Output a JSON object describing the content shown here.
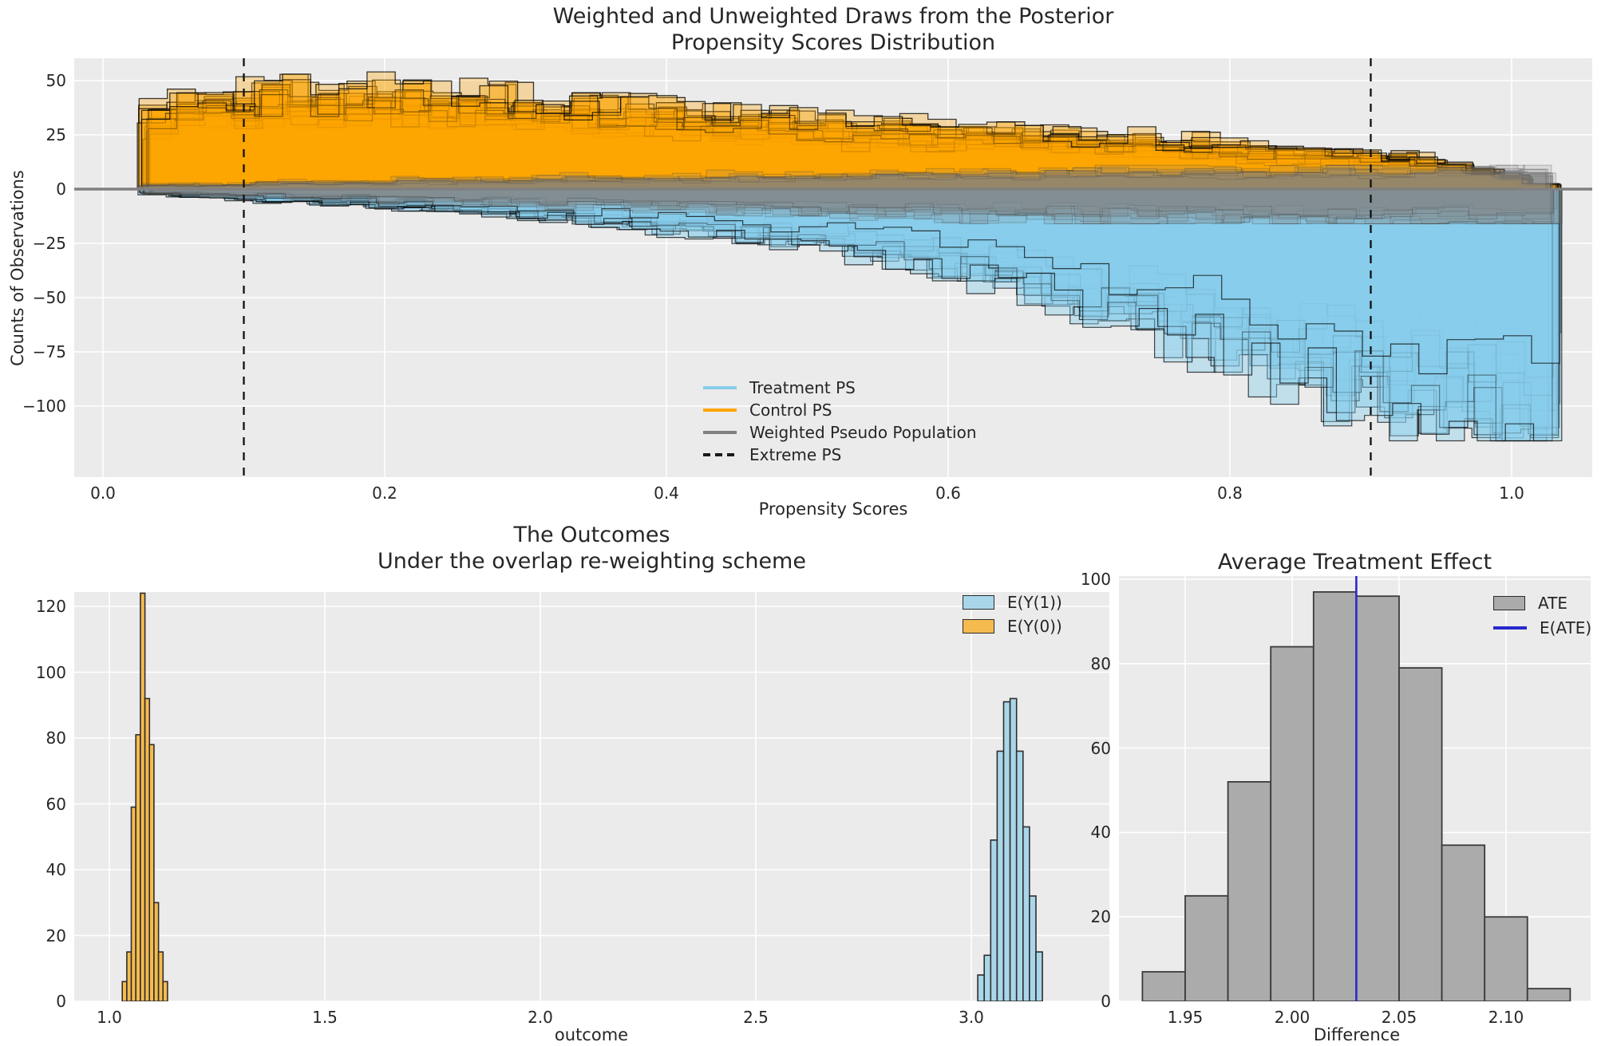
{
  "figure": {
    "bg": "#ffffff",
    "axes_bg": "#ebebeb",
    "grid_color": "#ffffff",
    "text_color": "#262626"
  },
  "chart_data": [
    {
      "type": "area",
      "panel": "top",
      "title_line1": "Weighted and Unweighted Draws from the Posterior",
      "title_line2": "Propensity Scores Distribution",
      "xlabel": "Propensity Scores",
      "ylabel": "Counts of Observations",
      "xlim": [
        -0.021,
        1.057
      ],
      "ylim": [
        -133,
        61
      ],
      "xtick_pos": [
        0.0,
        0.2,
        0.4,
        0.6,
        0.8,
        1.0
      ],
      "xtick_labels": [
        "0.0",
        "0.2",
        "0.4",
        "0.6",
        "0.8",
        "1.0"
      ],
      "ytick_pos": [
        50,
        25,
        0,
        -25,
        -50,
        -75,
        -100
      ],
      "ytick_labels": [
        "50",
        "25",
        "0",
        "−25",
        "−50",
        "−75",
        "−100"
      ],
      "grid": true,
      "legend_position": "lower center",
      "legend": [
        {
          "label": "Treatment PS",
          "swatch": "line",
          "color": "#87ceeb"
        },
        {
          "label": "Control PS",
          "swatch": "line",
          "color": "#ffa500"
        },
        {
          "label": "Weighted Pseudo Population",
          "swatch": "line",
          "color": "#808080"
        },
        {
          "label": "Extreme PS",
          "swatch": "dashed-line",
          "color": "#1a1a1a"
        }
      ],
      "zero_line": {
        "value": 0,
        "color": "#808080"
      },
      "extreme_ps": {
        "positions": [
          0.1,
          0.9
        ],
        "color": "#111111"
      },
      "bins": {
        "start": 0.03,
        "width": 0.02
      },
      "series": [
        {
          "name": "Control PS draws",
          "dir": 1,
          "color": "#ffa500",
          "fill_alpha": 0.32,
          "stroke": "#0a0a0a",
          "stroke_alpha": 0.8,
          "stroke_w": 1.3,
          "draws": 20,
          "fmin": 0.85,
          "fmax": 1.18,
          "noise": 0.22,
          "clamp": 54,
          "mean": [
            33,
            36,
            37,
            38,
            38,
            38,
            39,
            38,
            40,
            40,
            38,
            37,
            36,
            35,
            34,
            34,
            33,
            32,
            31,
            30,
            30,
            29,
            28,
            28,
            27,
            26,
            26,
            25,
            25,
            24,
            23,
            23,
            22,
            21,
            21,
            20,
            19,
            19,
            18,
            17,
            16,
            16,
            15,
            14,
            13,
            12,
            10,
            8,
            5,
            2
          ]
        },
        {
          "name": "Treatment PS draws",
          "dir": -1,
          "color": "#87ceeb",
          "fill_alpha": 0.42,
          "stroke": "#0a0a0a",
          "stroke_alpha": 0.75,
          "stroke_w": 1.2,
          "draws": 20,
          "fmin": 0.7,
          "fmax": 1.22,
          "noise": 0.22,
          "clamp": 116,
          "mean": [
            2,
            3,
            3,
            4,
            5,
            5,
            6,
            6,
            7,
            8,
            8,
            9,
            10,
            11,
            12,
            13,
            14,
            15,
            16,
            17,
            18,
            19,
            21,
            22,
            24,
            26,
            28,
            30,
            33,
            36,
            39,
            42,
            45,
            48,
            52,
            56,
            60,
            64,
            68,
            72,
            76,
            80,
            84,
            88,
            91,
            94,
            97,
            100,
            103,
            105
          ]
        },
        {
          "name": "Weighted pseudo population (control)",
          "dir": 1,
          "color": "#808080",
          "fill_alpha": 0.16,
          "stroke": "#3c3c3c",
          "stroke_alpha": 0.3,
          "stroke_w": 1,
          "draws": 10,
          "fmin": 0.7,
          "fmax": 1.2,
          "noise": 0.3,
          "clamp": 11,
          "mean": [
            2,
            2,
            2,
            2,
            3,
            3,
            3,
            3,
            3,
            4,
            4,
            4,
            4,
            4,
            5,
            5,
            5,
            5,
            5,
            5,
            6,
            6,
            6,
            6,
            6,
            6,
            7,
            7,
            7,
            7,
            7,
            7,
            7,
            8,
            8,
            8,
            8,
            8,
            8,
            8,
            8,
            9,
            9,
            9,
            9,
            9,
            9,
            9,
            9,
            9
          ]
        },
        {
          "name": "Weighted pseudo population (treatment)",
          "dir": -1,
          "color": "#808080",
          "fill_alpha": 0.16,
          "stroke": "#3c3c3c",
          "stroke_alpha": 0.3,
          "stroke_w": 1,
          "draws": 10,
          "fmin": 0.7,
          "fmax": 1.2,
          "noise": 0.3,
          "clamp": 16,
          "mean": [
            2,
            2,
            3,
            3,
            3,
            4,
            4,
            4,
            5,
            5,
            5,
            6,
            6,
            6,
            7,
            7,
            7,
            8,
            8,
            8,
            9,
            9,
            9,
            10,
            10,
            10,
            11,
            11,
            11,
            11,
            12,
            12,
            12,
            12,
            12,
            13,
            13,
            13,
            13,
            13,
            13,
            14,
            14,
            14,
            14,
            14,
            14,
            14,
            14,
            14
          ]
        }
      ]
    },
    {
      "type": "bar",
      "panel": "bottom-left",
      "title_line1": "The Outcomes",
      "title_line2": "Under the overlap re-weighting scheme",
      "xlabel": "outcome",
      "ylabel": "",
      "xlim": [
        0.919,
        3.32
      ],
      "ylim": [
        0,
        125
      ],
      "xtick_pos": [
        1.0,
        1.5,
        2.0,
        2.5,
        3.0
      ],
      "xtick_labels": [
        "1.0",
        "1.5",
        "2.0",
        "2.5",
        "3.0"
      ],
      "ytick_pos": [
        0,
        20,
        40,
        60,
        80,
        100,
        120
      ],
      "ytick_labels": [
        "0",
        "20",
        "40",
        "60",
        "80",
        "100",
        "120"
      ],
      "grid": true,
      "legend_position": "upper right",
      "legend": [
        {
          "label": "E(Y(1))",
          "swatch": "patch",
          "color": "#a9d6e9"
        },
        {
          "label": "E(Y(0))",
          "swatch": "patch",
          "color": "#f5bb4f"
        }
      ],
      "series": [
        {
          "name": "E(Y(0))",
          "color": "#f5bb4f",
          "edge": "#2e2e2e",
          "edge_w": 1.6,
          "bin_start": 1.03,
          "bin_width": 0.0105,
          "values": [
            6,
            15,
            59,
            81,
            124,
            92,
            78,
            30,
            15,
            6
          ]
        },
        {
          "name": "E(Y(1))",
          "color": "#a9d6e9",
          "edge": "#2e2e2e",
          "edge_w": 1.6,
          "bin_start": 3.015,
          "bin_width": 0.015,
          "values": [
            8,
            14,
            49,
            76,
            91,
            92,
            76,
            53,
            32,
            15
          ]
        }
      ]
    },
    {
      "type": "bar",
      "panel": "bottom-right",
      "title_line1": "Average Treatment Effect",
      "xlabel": "Difference",
      "ylabel": "",
      "xlim": [
        1.919,
        2.139
      ],
      "ylim": [
        0,
        100.8
      ],
      "xtick_pos": [
        1.95,
        2.0,
        2.05,
        2.1
      ],
      "xtick_labels": [
        "1.95",
        "2.00",
        "2.05",
        "2.10"
      ],
      "ytick_pos": [
        0,
        20,
        40,
        60,
        80,
        100
      ],
      "ytick_labels": [
        "0",
        "20",
        "40",
        "60",
        "80",
        "100"
      ],
      "grid": true,
      "legend_position": "upper right",
      "legend": [
        {
          "label": "ATE",
          "swatch": "patch",
          "color": "#ababab"
        },
        {
          "label": "E(ATE)",
          "swatch": "line",
          "color": "#2929cc"
        }
      ],
      "series": [
        {
          "name": "ATE",
          "color": "#ababab",
          "edge": "#3b3b3b",
          "edge_w": 1.8,
          "bin_start": 1.93,
          "bin_width": 0.02,
          "values": [
            7,
            25,
            52,
            84,
            97,
            96,
            79,
            37,
            20,
            3
          ]
        }
      ],
      "eate_line": {
        "label": "E(ATE)",
        "value": 2.03,
        "color": "#2929cc"
      }
    }
  ]
}
